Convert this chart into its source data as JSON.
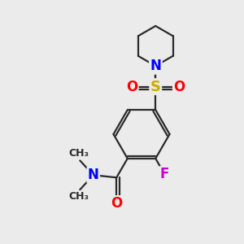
{
  "bg_color": "#ebebeb",
  "bond_color": "#2a2a2a",
  "bond_width": 1.6,
  "atom_colors": {
    "N": "#0000ff",
    "O": "#ff0000",
    "F": "#cc00cc",
    "S": "#ccaa00",
    "C": "#2a2a2a"
  },
  "font_size": 11
}
